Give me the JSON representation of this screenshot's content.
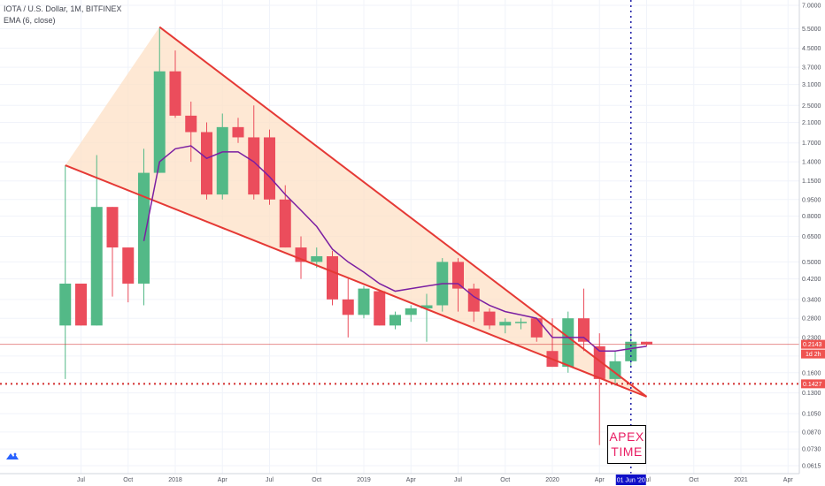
{
  "header": {
    "title": "IOTA / U.S. Dollar, 1M, BITFINEX",
    "indicator": "EMA (6, close)"
  },
  "annotation": {
    "apex_line1": "APEX",
    "apex_line2": "TIME"
  },
  "colors": {
    "up": "#53b987",
    "down": "#eb4d5c",
    "ema": "#7b1fa2",
    "wedge": "#e53935",
    "fill": "#fde0c5",
    "dotted_blue": "#1a1aa6",
    "price_line": "#d32f2f"
  },
  "chart_data": {
    "type": "candlestick",
    "scale": "log",
    "ylim": [
      0.0615,
      7.0
    ],
    "y_ticks": [
      "7.0000",
      "5.5000",
      "4.5000",
      "3.7000",
      "3.1000",
      "2.5000",
      "2.1000",
      "1.7000",
      "1.4000",
      "1.1500",
      "0.9500",
      "0.8000",
      "0.6500",
      "0.5000",
      "0.4200",
      "0.3400",
      "0.2800",
      "0.2300",
      "0.1900",
      "0.1600",
      "0.1300",
      "0.1050",
      "0.0870",
      "0.0730",
      "0.0615"
    ],
    "x_ticks": [
      "Jul",
      "Oct",
      "2018",
      "Apr",
      "Jul",
      "Oct",
      "2019",
      "Apr",
      "Jul",
      "Oct",
      "2020",
      "Apr",
      "Jul",
      "Oct",
      "2021",
      "Apr"
    ],
    "x_tick_months": [
      "2017-07",
      "2017-10",
      "2018-01",
      "2018-04",
      "2018-07",
      "2018-10",
      "2019-01",
      "2019-04",
      "2019-07",
      "2019-10",
      "2020-01",
      "2020-04",
      "2020-07",
      "2020-10",
      "2021-01",
      "2021-04"
    ],
    "candles": [
      {
        "month": "2017-06",
        "open": 0.26,
        "high": 1.35,
        "low": 0.15,
        "close": 0.4
      },
      {
        "month": "2017-07",
        "open": 0.4,
        "high": 0.4,
        "low": 0.26,
        "close": 0.26
      },
      {
        "month": "2017-08",
        "open": 0.26,
        "high": 1.5,
        "low": 0.26,
        "close": 0.88
      },
      {
        "month": "2017-09",
        "open": 0.88,
        "high": 0.88,
        "low": 0.35,
        "close": 0.58
      },
      {
        "month": "2017-10",
        "open": 0.58,
        "high": 0.58,
        "low": 0.33,
        "close": 0.4
      },
      {
        "month": "2017-11",
        "open": 0.4,
        "high": 1.6,
        "low": 0.32,
        "close": 1.25
      },
      {
        "month": "2017-12",
        "open": 1.25,
        "high": 5.55,
        "low": 1.25,
        "close": 3.55
      },
      {
        "month": "2018-01",
        "open": 3.55,
        "high": 4.4,
        "low": 2.2,
        "close": 2.25
      },
      {
        "month": "2018-02",
        "open": 2.25,
        "high": 2.6,
        "low": 1.4,
        "close": 1.9
      },
      {
        "month": "2018-03",
        "open": 1.9,
        "high": 2.1,
        "low": 0.95,
        "close": 1.0
      },
      {
        "month": "2018-04",
        "open": 1.0,
        "high": 2.3,
        "low": 0.95,
        "close": 2.0
      },
      {
        "month": "2018-05",
        "open": 2.0,
        "high": 2.2,
        "low": 1.7,
        "close": 1.8
      },
      {
        "month": "2018-06",
        "open": 1.8,
        "high": 2.5,
        "low": 0.95,
        "close": 1.0
      },
      {
        "month": "2018-07",
        "open": 1.8,
        "high": 1.95,
        "low": 0.9,
        "close": 0.95
      },
      {
        "month": "2018-08",
        "open": 0.95,
        "high": 1.1,
        "low": 0.58,
        "close": 0.58
      },
      {
        "month": "2018-09",
        "open": 0.58,
        "high": 0.65,
        "low": 0.42,
        "close": 0.5
      },
      {
        "month": "2018-10",
        "open": 0.5,
        "high": 0.58,
        "low": 0.47,
        "close": 0.53
      },
      {
        "month": "2018-11",
        "open": 0.53,
        "high": 0.56,
        "low": 0.32,
        "close": 0.34
      },
      {
        "month": "2018-12",
        "open": 0.34,
        "high": 0.42,
        "low": 0.23,
        "close": 0.29
      },
      {
        "month": "2019-01",
        "open": 0.29,
        "high": 0.39,
        "low": 0.28,
        "close": 0.38
      },
      {
        "month": "2019-02",
        "open": 0.37,
        "high": 0.37,
        "low": 0.26,
        "close": 0.26
      },
      {
        "month": "2019-03",
        "open": 0.26,
        "high": 0.3,
        "low": 0.25,
        "close": 0.29
      },
      {
        "month": "2019-04",
        "open": 0.29,
        "high": 0.32,
        "low": 0.27,
        "close": 0.31
      },
      {
        "month": "2019-05",
        "open": 0.31,
        "high": 0.36,
        "low": 0.22,
        "close": 0.32
      },
      {
        "month": "2019-06",
        "open": 0.32,
        "high": 0.52,
        "low": 0.3,
        "close": 0.5
      },
      {
        "month": "2019-07",
        "open": 0.5,
        "high": 0.52,
        "low": 0.3,
        "close": 0.38
      },
      {
        "month": "2019-08",
        "open": 0.38,
        "high": 0.4,
        "low": 0.27,
        "close": 0.3
      },
      {
        "month": "2019-09",
        "open": 0.3,
        "high": 0.31,
        "low": 0.25,
        "close": 0.26
      },
      {
        "month": "2019-10",
        "open": 0.26,
        "high": 0.28,
        "low": 0.24,
        "close": 0.27
      },
      {
        "month": "2019-11",
        "open": 0.27,
        "high": 0.28,
        "low": 0.25,
        "close": 0.27
      },
      {
        "month": "2019-12",
        "open": 0.28,
        "high": 0.28,
        "low": 0.22,
        "close": 0.23
      },
      {
        "month": "2020-01",
        "open": 0.2,
        "high": 0.28,
        "low": 0.17,
        "close": 0.17
      },
      {
        "month": "2020-02",
        "open": 0.17,
        "high": 0.3,
        "low": 0.16,
        "close": 0.28
      },
      {
        "month": "2020-03",
        "open": 0.28,
        "high": 0.38,
        "low": 0.2,
        "close": 0.22
      },
      {
        "month": "2020-04",
        "open": 0.21,
        "high": 0.24,
        "low": 0.076,
        "close": 0.15
      },
      {
        "month": "2020-05",
        "open": 0.15,
        "high": 0.2,
        "low": 0.14,
        "close": 0.18
      },
      {
        "month": "2020-06",
        "open": 0.18,
        "high": 0.25,
        "low": 0.17,
        "close": 0.22
      },
      {
        "month": "2020-07",
        "open": 0.22,
        "high": 0.22,
        "low": 0.21,
        "close": 0.214
      }
    ],
    "ema": {
      "months": [
        "2017-11",
        "2017-12",
        "2018-01",
        "2018-02",
        "2018-03",
        "2018-04",
        "2018-05",
        "2018-06",
        "2018-07",
        "2018-08",
        "2018-09",
        "2018-10",
        "2018-11",
        "2018-12",
        "2019-01",
        "2019-02",
        "2019-03",
        "2019-04",
        "2019-05",
        "2019-06",
        "2019-07",
        "2019-08",
        "2019-09",
        "2019-10",
        "2019-11",
        "2019-12",
        "2020-01",
        "2020-02",
        "2020-03",
        "2020-04",
        "2020-05",
        "2020-06",
        "2020-07"
      ],
      "values": [
        0.62,
        1.4,
        1.6,
        1.65,
        1.45,
        1.55,
        1.55,
        1.4,
        1.2,
        1.0,
        0.85,
        0.72,
        0.57,
        0.5,
        0.45,
        0.4,
        0.37,
        0.38,
        0.39,
        0.4,
        0.4,
        0.35,
        0.32,
        0.3,
        0.29,
        0.28,
        0.23,
        0.23,
        0.23,
        0.2,
        0.2,
        0.205,
        0.21
      ]
    },
    "wedge": {
      "upper": {
        "start": {
          "month": "2017-12",
          "price": 5.6
        },
        "end": {
          "month": "2020-07",
          "price": 0.125
        }
      },
      "lower": {
        "start": {
          "month": "2017-06",
          "price": 1.35
        },
        "end": {
          "month": "2020-07",
          "price": 0.125
        }
      }
    },
    "horizontal_lines": [
      {
        "price": 0.2143,
        "label": "0.2143",
        "style": "solid"
      },
      {
        "price": 0.1427,
        "label": "0.1427",
        "style": "dotted"
      }
    ],
    "countdown_label": "1d 2h",
    "vertical_marker": {
      "month": "2020-06",
      "label": "01 Jun '20"
    }
  }
}
